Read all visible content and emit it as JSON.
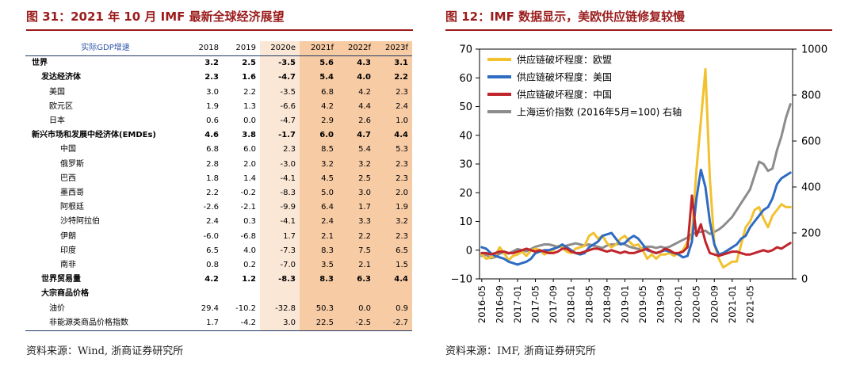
{
  "left_panel": {
    "title": "图 31：2021 年 10 月 IMF 最新全球经济展望",
    "source": "资料来源：Wind, 浙商证券研究所",
    "table": {
      "header_label": "实际GDP增速",
      "years": [
        "2018",
        "2019",
        "2020e",
        "2021f",
        "2022f",
        "2023f"
      ],
      "rows": [
        {
          "label": "世界",
          "level": 0,
          "bold": true,
          "values": [
            "3.2",
            "2.5",
            "-3.5",
            "5.6",
            "4.3",
            "3.1"
          ]
        },
        {
          "label": "发达经济体",
          "level": 1,
          "bold": true,
          "values": [
            "2.3",
            "1.6",
            "-4.7",
            "5.4",
            "4.0",
            "2.2"
          ]
        },
        {
          "label": "美国",
          "level": 2,
          "bold": false,
          "values": [
            "3.0",
            "2.2",
            "-3.5",
            "6.8",
            "4.2",
            "2.3"
          ]
        },
        {
          "label": "欧元区",
          "level": 2,
          "bold": false,
          "values": [
            "1.9",
            "1.3",
            "-6.6",
            "4.2",
            "4.4",
            "2.4"
          ]
        },
        {
          "label": "日本",
          "level": 2,
          "bold": false,
          "values": [
            "0.6",
            "0.0",
            "-4.7",
            "2.9",
            "2.6",
            "1.0"
          ]
        },
        {
          "label": "新兴市场和发展中经济体(EMDEs)",
          "level": 0,
          "bold": true,
          "values": [
            "4.6",
            "3.8",
            "-1.7",
            "6.0",
            "4.7",
            "4.4"
          ]
        },
        {
          "label": "中国",
          "level": 3,
          "bold": false,
          "values": [
            "6.8",
            "6.0",
            "2.3",
            "8.5",
            "5.4",
            "5.3"
          ]
        },
        {
          "label": "俄罗斯",
          "level": 3,
          "bold": false,
          "values": [
            "2.8",
            "2.0",
            "-3.0",
            "3.2",
            "3.2",
            "2.3"
          ]
        },
        {
          "label": "巴西",
          "level": 3,
          "bold": false,
          "values": [
            "1.8",
            "1.4",
            "-4.1",
            "4.5",
            "2.5",
            "2.3"
          ]
        },
        {
          "label": "墨西哥",
          "level": 3,
          "bold": false,
          "values": [
            "2.2",
            "-0.2",
            "-8.3",
            "5.0",
            "3.0",
            "2.0"
          ]
        },
        {
          "label": "阿根廷",
          "level": 3,
          "bold": false,
          "values": [
            "-2.6",
            "-2.1",
            "-9.9",
            "6.4",
            "1.7",
            "1.9"
          ]
        },
        {
          "label": "沙特阿拉伯",
          "level": 3,
          "bold": false,
          "values": [
            "2.4",
            "0.3",
            "-4.1",
            "2.4",
            "3.3",
            "3.2"
          ]
        },
        {
          "label": "伊朗",
          "level": 3,
          "bold": false,
          "values": [
            "-6.0",
            "-6.8",
            "1.7",
            "2.1",
            "2.2",
            "2.3"
          ]
        },
        {
          "label": "印度",
          "level": 3,
          "bold": false,
          "values": [
            "6.5",
            "4.0",
            "-7.3",
            "8.3",
            "7.5",
            "6.5"
          ]
        },
        {
          "label": "南非",
          "level": 3,
          "bold": false,
          "values": [
            "0.8",
            "0.2",
            "-7.0",
            "3.5",
            "2.1",
            "1.5"
          ]
        },
        {
          "label": "世界贸易量",
          "level": 1,
          "bold": true,
          "values": [
            "4.2",
            "1.2",
            "-8.3",
            "8.3",
            "6.3",
            "4.4"
          ]
        },
        {
          "label": "大宗商品价格",
          "level": 1,
          "bold": true,
          "values": [
            "",
            "",
            "",
            "",
            "",
            ""
          ]
        },
        {
          "label": "油价",
          "level": 2,
          "bold": false,
          "values": [
            "29.4",
            "-10.2",
            "-32.8",
            "50.3",
            "0.0",
            "0.9"
          ]
        },
        {
          "label": "非能源类商品价格指数",
          "level": 2,
          "bold": false,
          "values": [
            "1.7",
            "-4.2",
            "3.0",
            "22.5",
            "-2.5",
            "-2.7"
          ]
        }
      ]
    }
  },
  "right_panel": {
    "title": "图 12：IMF 数据显示，美欧供应链修复较慢",
    "source": "资料来源：IMF, 浙商证券研究所"
  },
  "chart_data": {
    "type": "line",
    "title": "",
    "xlabel": "",
    "ylabel": "",
    "x_start": "2016-05",
    "x_tick_labels": [
      "2016-05",
      "2016-09",
      "2017-01",
      "2017-05",
      "2017-09",
      "2018-01",
      "2018-05",
      "2018-09",
      "2019-01",
      "2019-05",
      "2019-09",
      "2020-01",
      "2020-05",
      "2020-09",
      "2021-01",
      "2021-05"
    ],
    "y_left": {
      "min": -10,
      "max": 70,
      "ticks": [
        -10,
        0,
        10,
        20,
        30,
        40,
        50,
        60,
        70
      ],
      "tick_labels": [
        "−10",
        "0",
        "10",
        "20",
        "30",
        "40",
        "50",
        "60",
        "70"
      ]
    },
    "y_right": {
      "min": 0,
      "max": 1000,
      "ticks": [
        0,
        200,
        400,
        600,
        800,
        1000
      ],
      "tick_labels": [
        "0",
        "200",
        "400",
        "600",
        "800",
        "1000"
      ]
    },
    "legend_position": "top-left",
    "series": [
      {
        "name": "供应链破坏程度：欧盟",
        "axis": "left",
        "color": "#f2c12e",
        "values": [
          -1.5,
          -3,
          -2.5,
          -2,
          1,
          -1,
          -3.5,
          -2,
          -1.5,
          -0.5,
          -2,
          0,
          0.5,
          0,
          -1.5,
          -0.5,
          0,
          1.5,
          1,
          -0.5,
          -1,
          0.5,
          1,
          1.5,
          5,
          6,
          4,
          5,
          2.5,
          1,
          2,
          4,
          5,
          3,
          1.5,
          2,
          0,
          -3,
          -1.5,
          -3,
          -1.5,
          -1.5,
          -1,
          -2,
          -1,
          0,
          3,
          5,
          28,
          45,
          63,
          25,
          2,
          -3,
          -6,
          -5,
          -4,
          -4,
          2,
          8,
          10,
          14,
          15,
          11,
          8,
          12,
          14,
          16,
          15,
          15
        ]
      },
      {
        "name": "供应链破坏程度：美国",
        "axis": "left",
        "color": "#2e6bc2",
        "values": [
          1,
          0.5,
          -1,
          -2,
          -2.5,
          -3,
          -4,
          -4.5,
          -5,
          -4.5,
          -4,
          -3,
          -1,
          -0.5,
          0,
          0,
          0.5,
          1,
          2,
          1,
          0,
          -1,
          -1.5,
          -1,
          1,
          2,
          3,
          5,
          5.5,
          6,
          4,
          2,
          2.5,
          4,
          5,
          4,
          2,
          0,
          -0.5,
          -1,
          -0.5,
          0,
          -0.5,
          -1,
          -1.5,
          -2.5,
          -2,
          3,
          18,
          28,
          22,
          10,
          2,
          -1.5,
          -1,
          0,
          1,
          2,
          4,
          5,
          8,
          10,
          12,
          14,
          15,
          18,
          23,
          25,
          26,
          27
        ]
      },
      {
        "name": "供应链破坏程度：中国",
        "axis": "left",
        "color": "#c0252c",
        "values": [
          -1,
          -1,
          -1.5,
          -1,
          -0.5,
          -0.5,
          -1,
          -1,
          -0.5,
          0,
          0.5,
          0,
          -0.5,
          0,
          -0.5,
          -1,
          -1,
          -0.5,
          0.5,
          0.5,
          -0.5,
          -1,
          -1,
          -0.5,
          0,
          0.5,
          0.5,
          0,
          -0.5,
          0,
          -0.5,
          -1,
          -0.5,
          -1,
          -1,
          -0.5,
          0,
          0.5,
          -0.5,
          -1,
          -0.5,
          0.5,
          0,
          -1,
          -1,
          -0.5,
          1,
          19,
          5,
          9,
          3,
          -1,
          -1.5,
          -2,
          -1.5,
          -1,
          -0.5,
          -0.5,
          -1,
          -1.5,
          -1.5,
          -1,
          -0.5,
          0,
          -0.5,
          0,
          1,
          0.5,
          1.5,
          2.5
        ]
      },
      {
        "name": "上海运价指数 (2016年5月=100) 右轴",
        "axis": "right",
        "color": "#8c8c8c",
        "values": [
          100,
          105,
          90,
          95,
          110,
          115,
          110,
          120,
          130,
          125,
          120,
          130,
          140,
          145,
          150,
          150,
          145,
          140,
          140,
          145,
          150,
          155,
          150,
          145,
          150,
          145,
          140,
          135,
          145,
          150,
          150,
          155,
          150,
          140,
          135,
          130,
          135,
          140,
          140,
          135,
          140,
          135,
          140,
          150,
          160,
          170,
          180,
          195,
          200,
          205,
          210,
          195,
          205,
          215,
          230,
          250,
          270,
          300,
          330,
          360,
          390,
          450,
          510,
          500,
          470,
          480,
          560,
          620,
          700,
          760
        ]
      }
    ]
  }
}
